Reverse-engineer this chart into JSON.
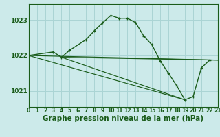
{
  "title": "Graphe pression niveau de la mer (hPa)",
  "background_color": "#cceaea",
  "grid_color": "#aad4d4",
  "line_color": "#1a5c1a",
  "xlim": [
    0,
    23
  ],
  "ylim": [
    1020.55,
    1023.45
  ],
  "yticks": [
    1021,
    1022,
    1023
  ],
  "xtick_labels": [
    "0",
    "1",
    "2",
    "3",
    "4",
    "5",
    "6",
    "7",
    "8",
    "9",
    "10",
    "11",
    "12",
    "13",
    "14",
    "15",
    "16",
    "17",
    "18",
    "19",
    "20",
    "21",
    "22",
    "23"
  ],
  "title_fontsize": 7.5,
  "tick_fontsize": 5.5,
  "label_color": "#1a5c1a",
  "main_x": [
    0,
    3,
    4,
    5,
    7,
    8,
    9,
    10,
    11,
    12,
    13,
    14,
    15,
    16,
    17,
    18,
    19,
    20,
    21,
    22
  ],
  "main_y": [
    1022.0,
    1022.1,
    1021.95,
    1022.15,
    1022.45,
    1022.7,
    1022.92,
    1023.13,
    1023.05,
    1023.05,
    1022.93,
    1022.55,
    1022.3,
    1021.85,
    1021.5,
    1021.15,
    1020.75,
    1020.84,
    1021.65,
    1021.87
  ],
  "fan_lines": [
    {
      "x": [
        0,
        23
      ],
      "y": [
        1022.0,
        1021.87
      ]
    },
    {
      "x": [
        4,
        23
      ],
      "y": [
        1021.95,
        1021.87
      ]
    },
    {
      "x": [
        4,
        19
      ],
      "y": [
        1021.95,
        1020.75
      ]
    },
    {
      "x": [
        0,
        19
      ],
      "y": [
        1022.0,
        1020.75
      ]
    }
  ]
}
